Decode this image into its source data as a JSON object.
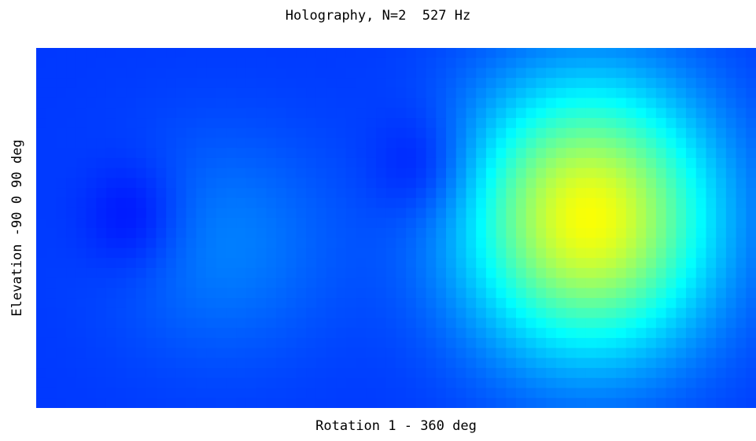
{
  "chart_data": {
    "type": "heatmap",
    "title": "Holography, N=2  527 Hz",
    "xlabel": "Rotation 1 - 360 deg",
    "ylabel": "Elevation -90 0 90 deg",
    "xlim": [
      1,
      360
    ],
    "ylim": [
      -90,
      90
    ],
    "colormap": "jet",
    "grid": false,
    "legend": "none",
    "colors": {
      "background": "#0000c8",
      "peak": "#c8ff37",
      "trough": "#000078"
    },
    "features": [
      {
        "kind": "peak",
        "rotation_deg": 277,
        "elevation_deg": 5,
        "level": 0.62
      },
      {
        "kind": "peak",
        "rotation_deg": 95,
        "elevation_deg": -8,
        "level": 0.25
      },
      {
        "kind": "trough",
        "rotation_deg": 50,
        "elevation_deg": 5,
        "level": 0.12
      },
      {
        "kind": "trough",
        "rotation_deg": 195,
        "elevation_deg": 30,
        "level": 0.12
      }
    ]
  }
}
